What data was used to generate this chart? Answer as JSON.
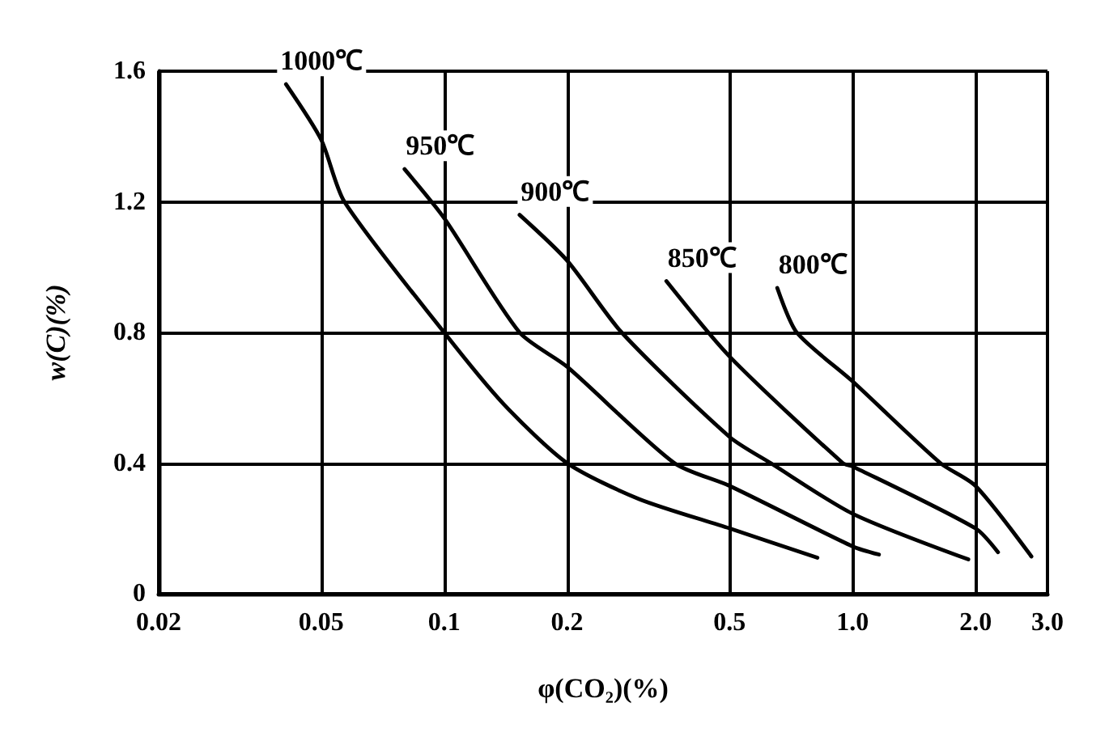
{
  "chart_data": {
    "type": "line",
    "xlabel": "φ(CO₂)(%)",
    "ylabel": "w(C)(%)",
    "log": "x",
    "xlim": [
      0.02,
      3.0
    ],
    "xticks": [
      0.02,
      0.05,
      0.1,
      0.2,
      0.5,
      {
        "value": 1,
        "label": "1.0"
      },
      {
        "value": 2,
        "label": "2.0"
      },
      {
        "value": 3,
        "label": "3.0"
      }
    ],
    "ylim": [
      0,
      1.6
    ],
    "yticks": [
      0,
      0.4,
      0.8,
      1.2,
      1.6
    ],
    "grid": true,
    "legend": false,
    "marker": "none",
    "line_style": "solid",
    "series": [
      {
        "name": "1000℃",
        "color": "#000000",
        "x": [
          0.041,
          0.05,
          0.057,
          0.1,
          0.14,
          0.2,
          0.3,
          0.5,
          0.82
        ],
        "values": [
          1.56,
          1.39,
          1.2,
          0.8,
          0.58,
          0.4,
          0.29,
          0.2,
          0.11
        ]
      },
      {
        "name": "950℃",
        "color": "#000000",
        "x": [
          0.08,
          0.1,
          0.153,
          0.2,
          0.366,
          0.5,
          1.0,
          1.16
        ],
        "values": [
          1.3,
          1.15,
          0.8,
          0.695,
          0.4,
          0.33,
          0.145,
          0.12
        ]
      },
      {
        "name": "900℃",
        "color": "#000000",
        "x": [
          0.153,
          0.2,
          0.272,
          0.5,
          0.63,
          1.0,
          1.92
        ],
        "values": [
          1.16,
          1.02,
          0.8,
          0.48,
          0.4,
          0.245,
          0.105
        ]
      },
      {
        "name": "850℃",
        "color": "#000000",
        "x": [
          0.35,
          0.5,
          0.946,
          1.0,
          2.0,
          2.27
        ],
        "values": [
          0.957,
          0.726,
          0.4,
          0.39,
          0.2,
          0.127
        ]
      },
      {
        "name": "800℃",
        "color": "#000000",
        "x": [
          0.654,
          0.73,
          1.0,
          1.64,
          2.0,
          2.74
        ],
        "values": [
          0.936,
          0.8,
          0.65,
          0.4,
          0.33,
          0.114
        ]
      }
    ]
  }
}
